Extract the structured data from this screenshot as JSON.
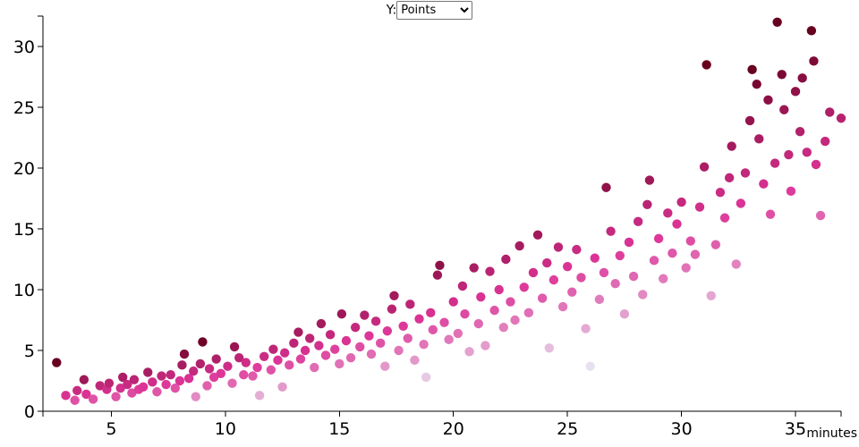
{
  "controls": {
    "y_label": "Y:",
    "y_options": [
      "Points"
    ],
    "y_selected": "Points"
  },
  "chart_data": {
    "type": "scatter",
    "title": "",
    "xlabel": "minutes",
    "ylabel": "",
    "xlim": [
      2,
      37
    ],
    "ylim": [
      0,
      32.5
    ],
    "x_ticks": [
      5,
      10,
      15,
      20,
      25,
      30,
      35
    ],
    "y_ticks": [
      0,
      5,
      10,
      15,
      20,
      25,
      30
    ],
    "grid": false,
    "legend": "none",
    "color_scale": {
      "low": "#e7e1ef",
      "mid": "#dd3497",
      "high": "#67001f"
    },
    "points": [
      {
        "x": 2.6,
        "y": 4.0
      },
      {
        "x": 3.0,
        "y": 1.3
      },
      {
        "x": 3.4,
        "y": 0.9
      },
      {
        "x": 3.5,
        "y": 1.7
      },
      {
        "x": 3.8,
        "y": 2.6
      },
      {
        "x": 3.9,
        "y": 1.4
      },
      {
        "x": 4.2,
        "y": 1.0
      },
      {
        "x": 4.5,
        "y": 2.1
      },
      {
        "x": 4.8,
        "y": 1.8
      },
      {
        "x": 4.9,
        "y": 2.3
      },
      {
        "x": 5.2,
        "y": 1.2
      },
      {
        "x": 5.4,
        "y": 1.9
      },
      {
        "x": 5.5,
        "y": 2.8
      },
      {
        "x": 5.7,
        "y": 2.2
      },
      {
        "x": 5.9,
        "y": 1.5
      },
      {
        "x": 6.0,
        "y": 2.6
      },
      {
        "x": 6.2,
        "y": 1.8
      },
      {
        "x": 6.4,
        "y": 2.0
      },
      {
        "x": 6.6,
        "y": 3.2
      },
      {
        "x": 6.8,
        "y": 2.4
      },
      {
        "x": 7.0,
        "y": 1.6
      },
      {
        "x": 7.2,
        "y": 2.9
      },
      {
        "x": 7.4,
        "y": 2.2
      },
      {
        "x": 7.6,
        "y": 3.0
      },
      {
        "x": 7.8,
        "y": 1.9
      },
      {
        "x": 8.0,
        "y": 2.5
      },
      {
        "x": 8.1,
        "y": 3.8
      },
      {
        "x": 8.2,
        "y": 4.7
      },
      {
        "x": 8.4,
        "y": 2.7
      },
      {
        "x": 8.6,
        "y": 3.3
      },
      {
        "x": 8.7,
        "y": 1.2
      },
      {
        "x": 8.9,
        "y": 3.9
      },
      {
        "x": 9.0,
        "y": 5.7
      },
      {
        "x": 9.2,
        "y": 2.1
      },
      {
        "x": 9.3,
        "y": 3.5
      },
      {
        "x": 9.5,
        "y": 2.8
      },
      {
        "x": 9.6,
        "y": 4.3
      },
      {
        "x": 9.8,
        "y": 3.1
      },
      {
        "x": 10.1,
        "y": 3.7
      },
      {
        "x": 10.3,
        "y": 2.3
      },
      {
        "x": 10.4,
        "y": 5.3
      },
      {
        "x": 10.6,
        "y": 4.4
      },
      {
        "x": 10.8,
        "y": 3.0
      },
      {
        "x": 10.9,
        "y": 4.0
      },
      {
        "x": 11.2,
        "y": 2.9
      },
      {
        "x": 11.4,
        "y": 3.6
      },
      {
        "x": 11.5,
        "y": 1.3
      },
      {
        "x": 11.7,
        "y": 4.5
      },
      {
        "x": 12.0,
        "y": 3.4
      },
      {
        "x": 12.1,
        "y": 5.1
      },
      {
        "x": 12.3,
        "y": 4.2
      },
      {
        "x": 12.5,
        "y": 2.0
      },
      {
        "x": 12.6,
        "y": 4.8
      },
      {
        "x": 12.8,
        "y": 3.8
      },
      {
        "x": 13.0,
        "y": 5.6
      },
      {
        "x": 13.2,
        "y": 6.5
      },
      {
        "x": 13.3,
        "y": 4.3
      },
      {
        "x": 13.5,
        "y": 5.0
      },
      {
        "x": 13.7,
        "y": 6.0
      },
      {
        "x": 13.9,
        "y": 3.6
      },
      {
        "x": 14.1,
        "y": 5.4
      },
      {
        "x": 14.2,
        "y": 7.2
      },
      {
        "x": 14.4,
        "y": 4.6
      },
      {
        "x": 14.6,
        "y": 6.3
      },
      {
        "x": 14.8,
        "y": 5.1
      },
      {
        "x": 15.0,
        "y": 3.9
      },
      {
        "x": 15.1,
        "y": 8.0
      },
      {
        "x": 15.3,
        "y": 5.8
      },
      {
        "x": 15.5,
        "y": 4.4
      },
      {
        "x": 15.7,
        "y": 6.9
      },
      {
        "x": 15.9,
        "y": 5.3
      },
      {
        "x": 16.1,
        "y": 7.9
      },
      {
        "x": 16.3,
        "y": 6.2
      },
      {
        "x": 16.4,
        "y": 4.7
      },
      {
        "x": 16.6,
        "y": 7.4
      },
      {
        "x": 16.8,
        "y": 5.6
      },
      {
        "x": 17.0,
        "y": 3.7
      },
      {
        "x": 17.1,
        "y": 6.6
      },
      {
        "x": 17.3,
        "y": 8.4
      },
      {
        "x": 17.4,
        "y": 9.5
      },
      {
        "x": 17.6,
        "y": 5.0
      },
      {
        "x": 17.8,
        "y": 7.0
      },
      {
        "x": 18.0,
        "y": 6.0
      },
      {
        "x": 18.1,
        "y": 8.8
      },
      {
        "x": 18.3,
        "y": 4.2
      },
      {
        "x": 18.5,
        "y": 7.6
      },
      {
        "x": 18.7,
        "y": 5.5
      },
      {
        "x": 18.8,
        "y": 2.8
      },
      {
        "x": 19.0,
        "y": 8.1
      },
      {
        "x": 19.1,
        "y": 6.7
      },
      {
        "x": 19.3,
        "y": 11.2
      },
      {
        "x": 19.4,
        "y": 12.0
      },
      {
        "x": 19.6,
        "y": 7.3
      },
      {
        "x": 19.8,
        "y": 5.9
      },
      {
        "x": 20.0,
        "y": 9.0
      },
      {
        "x": 20.2,
        "y": 6.4
      },
      {
        "x": 20.4,
        "y": 10.3
      },
      {
        "x": 20.5,
        "y": 8.0
      },
      {
        "x": 20.7,
        "y": 4.9
      },
      {
        "x": 20.9,
        "y": 11.8
      },
      {
        "x": 21.1,
        "y": 7.2
      },
      {
        "x": 21.2,
        "y": 9.4
      },
      {
        "x": 21.4,
        "y": 5.4
      },
      {
        "x": 21.6,
        "y": 11.5
      },
      {
        "x": 21.8,
        "y": 8.3
      },
      {
        "x": 22.0,
        "y": 10.0
      },
      {
        "x": 22.2,
        "y": 6.9
      },
      {
        "x": 22.3,
        "y": 12.5
      },
      {
        "x": 22.5,
        "y": 9.0
      },
      {
        "x": 22.7,
        "y": 7.5
      },
      {
        "x": 22.9,
        "y": 13.6
      },
      {
        "x": 23.1,
        "y": 10.2
      },
      {
        "x": 23.3,
        "y": 8.1
      },
      {
        "x": 23.5,
        "y": 11.4
      },
      {
        "x": 23.7,
        "y": 14.5
      },
      {
        "x": 23.9,
        "y": 9.3
      },
      {
        "x": 24.1,
        "y": 12.2
      },
      {
        "x": 24.2,
        "y": 5.2
      },
      {
        "x": 24.4,
        "y": 10.8
      },
      {
        "x": 24.6,
        "y": 13.5
      },
      {
        "x": 24.8,
        "y": 8.6
      },
      {
        "x": 25.0,
        "y": 11.9
      },
      {
        "x": 25.2,
        "y": 9.8
      },
      {
        "x": 25.4,
        "y": 13.3
      },
      {
        "x": 25.6,
        "y": 11.0
      },
      {
        "x": 25.8,
        "y": 6.8
      },
      {
        "x": 26.0,
        "y": 3.7
      },
      {
        "x": 26.2,
        "y": 12.6
      },
      {
        "x": 26.4,
        "y": 9.2
      },
      {
        "x": 26.6,
        "y": 11.4
      },
      {
        "x": 26.7,
        "y": 18.4
      },
      {
        "x": 26.9,
        "y": 14.8
      },
      {
        "x": 27.1,
        "y": 10.5
      },
      {
        "x": 27.3,
        "y": 12.8
      },
      {
        "x": 27.5,
        "y": 8.0
      },
      {
        "x": 27.7,
        "y": 13.9
      },
      {
        "x": 27.9,
        "y": 11.1
      },
      {
        "x": 28.1,
        "y": 15.6
      },
      {
        "x": 28.3,
        "y": 9.6
      },
      {
        "x": 28.5,
        "y": 17.0
      },
      {
        "x": 28.6,
        "y": 19.0
      },
      {
        "x": 28.8,
        "y": 12.4
      },
      {
        "x": 29.0,
        "y": 14.2
      },
      {
        "x": 29.2,
        "y": 10.9
      },
      {
        "x": 29.4,
        "y": 16.3
      },
      {
        "x": 29.6,
        "y": 13.0
      },
      {
        "x": 29.8,
        "y": 15.4
      },
      {
        "x": 30.0,
        "y": 17.2
      },
      {
        "x": 30.2,
        "y": 11.8
      },
      {
        "x": 30.4,
        "y": 14.0
      },
      {
        "x": 30.6,
        "y": 12.9
      },
      {
        "x": 30.8,
        "y": 16.8
      },
      {
        "x": 31.0,
        "y": 20.1
      },
      {
        "x": 31.1,
        "y": 28.5
      },
      {
        "x": 31.3,
        "y": 9.5
      },
      {
        "x": 31.5,
        "y": 13.7
      },
      {
        "x": 31.7,
        "y": 18.0
      },
      {
        "x": 31.9,
        "y": 15.9
      },
      {
        "x": 32.1,
        "y": 19.2
      },
      {
        "x": 32.2,
        "y": 21.8
      },
      {
        "x": 32.4,
        "y": 12.1
      },
      {
        "x": 32.6,
        "y": 17.1
      },
      {
        "x": 32.8,
        "y": 19.6
      },
      {
        "x": 33.0,
        "y": 23.9
      },
      {
        "x": 33.1,
        "y": 28.1
      },
      {
        "x": 33.3,
        "y": 26.9
      },
      {
        "x": 33.4,
        "y": 22.4
      },
      {
        "x": 33.6,
        "y": 18.7
      },
      {
        "x": 33.8,
        "y": 25.6
      },
      {
        "x": 33.9,
        "y": 16.2
      },
      {
        "x": 34.1,
        "y": 20.4
      },
      {
        "x": 34.2,
        "y": 32.0
      },
      {
        "x": 34.4,
        "y": 27.7
      },
      {
        "x": 34.5,
        "y": 24.8
      },
      {
        "x": 34.7,
        "y": 21.1
      },
      {
        "x": 34.8,
        "y": 18.1
      },
      {
        "x": 35.0,
        "y": 26.3
      },
      {
        "x": 35.2,
        "y": 23.0
      },
      {
        "x": 35.3,
        "y": 27.4
      },
      {
        "x": 35.5,
        "y": 21.3
      },
      {
        "x": 35.7,
        "y": 31.3
      },
      {
        "x": 35.8,
        "y": 28.8
      },
      {
        "x": 35.9,
        "y": 20.3
      },
      {
        "x": 36.1,
        "y": 16.1
      },
      {
        "x": 36.3,
        "y": 22.2
      },
      {
        "x": 36.5,
        "y": 24.6
      },
      {
        "x": 37.0,
        "y": 24.1
      }
    ]
  }
}
